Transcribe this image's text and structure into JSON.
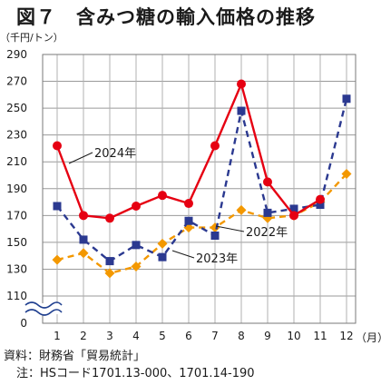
{
  "page": {
    "title": "図７　含みつ糖の輸入価格の推移",
    "unit_label": "（千円/トン）",
    "month_unit": "（月）",
    "source": "資料：財務省「貿易統計」",
    "note": "注：HSコード1701.13-000、1701.14-190"
  },
  "chart_data": {
    "type": "line",
    "title": "図７　含みつ糖の輸入価格の推移",
    "xlabel": "（月）",
    "ylabel": "（千円/トン）",
    "x": [
      1,
      2,
      3,
      4,
      5,
      6,
      7,
      8,
      9,
      10,
      11,
      12
    ],
    "x_tick_labels": [
      "1",
      "2",
      "3",
      "4",
      "5",
      "6",
      "7",
      "8",
      "9",
      "10",
      "11",
      "12"
    ],
    "y_ticks": [
      0,
      110,
      130,
      150,
      170,
      190,
      210,
      230,
      250,
      270,
      290
    ],
    "ylim": [
      110,
      290
    ],
    "y_axis_break": true,
    "grid": true,
    "series": [
      {
        "name": "2024年",
        "color": "#e60012",
        "line_style": "solid",
        "marker": "circle",
        "values": [
          222,
          170,
          168,
          177,
          185,
          179,
          222,
          268,
          195,
          170,
          182,
          null
        ]
      },
      {
        "name": "2023年",
        "color": "#2b3990",
        "line_style": "dashed",
        "marker": "square",
        "values": [
          177,
          152,
          136,
          148,
          139,
          166,
          155,
          248,
          172,
          175,
          178,
          257
        ]
      },
      {
        "name": "2022年",
        "color": "#f39800",
        "line_style": "dashed",
        "marker": "diamond",
        "values": [
          137,
          142,
          127,
          132,
          149,
          161,
          161,
          174,
          168,
          170,
          180,
          201
        ]
      }
    ]
  }
}
